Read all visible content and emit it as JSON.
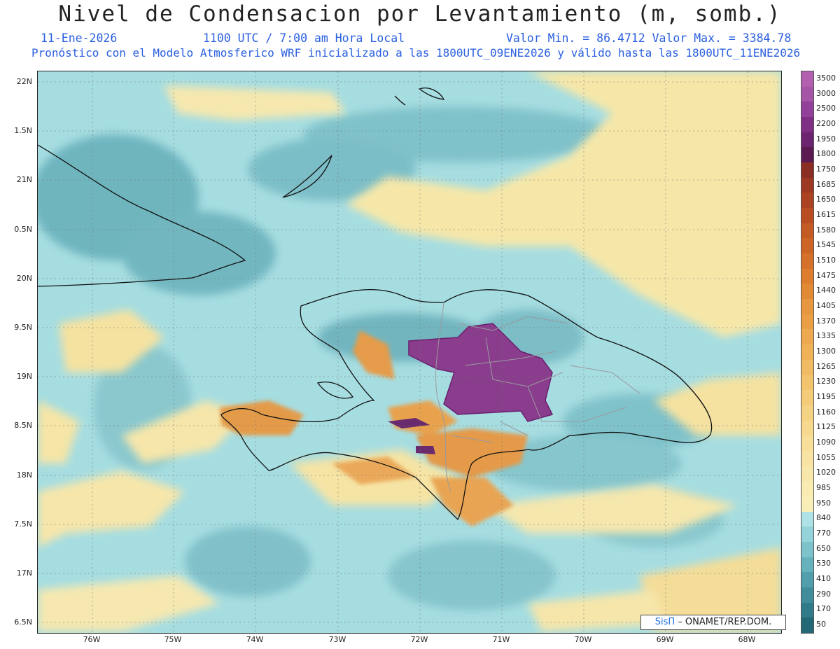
{
  "header": {
    "title": "Nivel de Condensacion por Levantamiento (m, somb.)",
    "date": "11-Ene-2026",
    "time": "1100 UTC / 7:00 am Hora Local",
    "minmax": "Valor Min. = 86.4712  Valor Max. = 3384.78",
    "model_line": "Pronóstico con el Modelo Atmosferico WRF inicializado a las 1800UTC_09ENE2026 y válido hasta las  1800UTC_11ENE2026"
  },
  "axes": {
    "lat_labels": [
      "22N",
      "1.5N",
      "21N",
      "0.5N",
      "20N",
      "9.5N",
      "19N",
      "8.5N",
      "18N",
      "7.5N",
      "17N",
      "6.5N"
    ],
    "lon_labels": [
      "76W",
      "75W",
      "74W",
      "73W",
      "72W",
      "71W",
      "70W",
      "69W",
      "68W"
    ]
  },
  "colorbar": {
    "labels": [
      "3500",
      "3000",
      "2500",
      "2200",
      "1950",
      "1800",
      "1750",
      "1685",
      "1650",
      "1615",
      "1580",
      "1545",
      "1510",
      "1475",
      "1440",
      "1405",
      "1370",
      "1335",
      "1300",
      "1265",
      "1230",
      "1195",
      "1160",
      "1125",
      "1090",
      "1055",
      "1020",
      "985",
      "950",
      "840",
      "770",
      "650",
      "530",
      "410",
      "290",
      "170",
      "50"
    ],
    "colors": [
      "#b35fb0",
      "#a654a6",
      "#93409a",
      "#7e2f84",
      "#6c2471",
      "#5c1a52",
      "#8a2e24",
      "#9d3823",
      "#ab4322",
      "#b84e22",
      "#c45a24",
      "#cd6526",
      "#d5712a",
      "#dc7d2f",
      "#e18a36",
      "#e6973f",
      "#ea9f47",
      "#eda94f",
      "#efb258",
      "#f1bb63",
      "#f3c46e",
      "#f4cc79",
      "#f5d384",
      "#f6d98f",
      "#f7de99",
      "#f8e3a2",
      "#f8e7aa",
      "#f9ebb1",
      "#f9eeb7",
      "#aee2e6",
      "#94d3d9",
      "#7cc3cb",
      "#66b2bc",
      "#519fac",
      "#408c9b",
      "#307a8a",
      "#226876"
    ]
  },
  "credit": {
    "brand": "SisΠ",
    "text": "– ONAMET/REP.DOM."
  }
}
